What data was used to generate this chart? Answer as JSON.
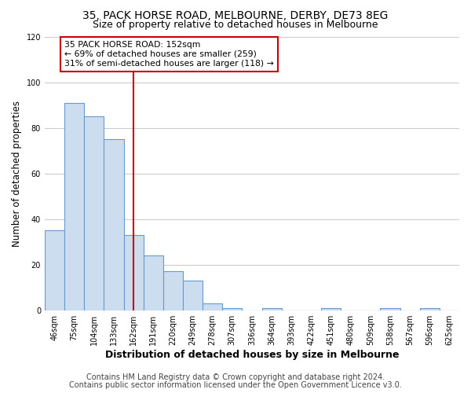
{
  "title": "35, PACK HORSE ROAD, MELBOURNE, DERBY, DE73 8EG",
  "subtitle": "Size of property relative to detached houses in Melbourne",
  "xlabel": "Distribution of detached houses by size in Melbourne",
  "ylabel": "Number of detached properties",
  "bar_labels": [
    "46sqm",
    "75sqm",
    "104sqm",
    "133sqm",
    "162sqm",
    "191sqm",
    "220sqm",
    "249sqm",
    "278sqm",
    "307sqm",
    "336sqm",
    "364sqm",
    "393sqm",
    "422sqm",
    "451sqm",
    "480sqm",
    "509sqm",
    "538sqm",
    "567sqm",
    "596sqm",
    "625sqm"
  ],
  "bar_values": [
    35,
    91,
    85,
    75,
    33,
    24,
    17,
    13,
    3,
    1,
    0,
    1,
    0,
    0,
    1,
    0,
    0,
    1,
    0,
    1,
    0
  ],
  "bar_color": "#ccddf0",
  "bar_edge_color": "#6699cc",
  "red_line_index": 4,
  "annotation_title": "35 PACK HORSE ROAD: 152sqm",
  "annotation_line1": "← 69% of detached houses are smaller (259)",
  "annotation_line2": "31% of semi-detached houses are larger (118) →",
  "annotation_box_color": "#ffffff",
  "annotation_border_color": "#cc0000",
  "vline_color": "#cc0000",
  "ylim": [
    0,
    120
  ],
  "yticks": [
    0,
    20,
    40,
    60,
    80,
    100,
    120
  ],
  "footer1": "Contains HM Land Registry data © Crown copyright and database right 2024.",
  "footer2": "Contains public sector information licensed under the Open Government Licence v3.0.",
  "bg_color": "#ffffff",
  "plot_bg_color": "#ffffff",
  "grid_color": "#cccccc",
  "title_fontsize": 10,
  "subtitle_fontsize": 9,
  "xlabel_fontsize": 9,
  "ylabel_fontsize": 8.5,
  "tick_fontsize": 7,
  "footer_fontsize": 7,
  "annotation_fontsize": 7.8
}
